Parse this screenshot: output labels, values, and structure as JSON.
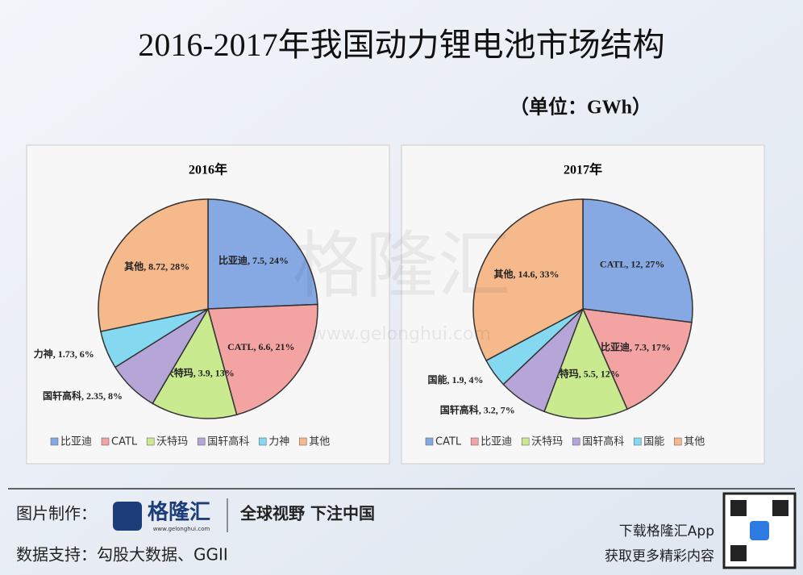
{
  "title": "2016-2017年我国动力锂电池市场结构",
  "unit": "（单位：GWh）",
  "watermark": {
    "logo": "格隆汇",
    "url": "www.gelonghui.com"
  },
  "chart_data": [
    {
      "type": "pie",
      "title": "2016年",
      "categories": [
        "比亚迪",
        "CATL",
        "沃特玛",
        "国轩高科",
        "力神",
        "其他"
      ],
      "values": [
        7.5,
        6.6,
        3.9,
        2.35,
        1.73,
        8.72
      ],
      "value_labels": [
        "比亚迪, 7.5, 24%",
        "CATL, 6.6, 21%",
        "沃特玛, 3.9, 13%",
        "国轩高科, 2.35, 8%",
        "力神, 1.73, 6%",
        "其他, 8.72, 28%"
      ],
      "colors": [
        "#86a9e4",
        "#f4a3a3",
        "#c9ea8e",
        "#b6a6d8",
        "#84d9f0",
        "#f6b98c"
      ],
      "legend": "bottom"
    },
    {
      "type": "pie",
      "title": "2017年",
      "categories": [
        "CATL",
        "比亚迪",
        "沃特玛",
        "国轩高科",
        "国能",
        "其他"
      ],
      "values": [
        12,
        7.3,
        5.5,
        3.2,
        1.9,
        14.6
      ],
      "value_labels": [
        "CATL, 12, 27%",
        "比亚迪, 7.3, 17%",
        "沃特玛, 5.5, 12%",
        "国轩高科, 3.2, 7%",
        "国能, 1.9, 4%",
        "其他, 14.6, 33%"
      ],
      "colors": [
        "#86a9e4",
        "#f4a3a3",
        "#c9ea8e",
        "#b6a6d8",
        "#84d9f0",
        "#f6b98c"
      ],
      "legend": "bottom"
    }
  ],
  "footer": {
    "made_by_label": "图片制作：",
    "brand": "格隆汇",
    "brand_url": "www.gelonghui.com",
    "slogan": "全球视野 下注中国",
    "source": "数据支持：勾股大数据、GGII",
    "app": "下载格隆汇App",
    "more": "获取更多精彩内容"
  }
}
